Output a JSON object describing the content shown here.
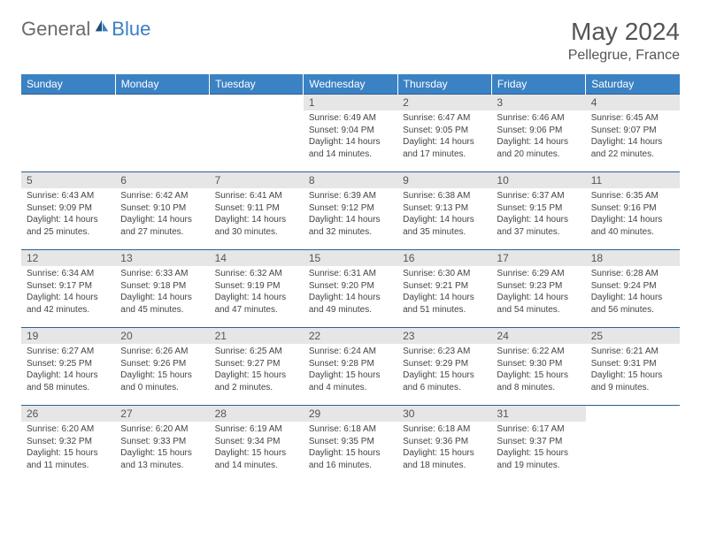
{
  "brand": {
    "part1": "General",
    "part2": "Blue"
  },
  "title": "May 2024",
  "location": "Pellegrue, France",
  "colors": {
    "header_bg": "#3b82c4",
    "header_text": "#ffffff",
    "daynum_bg": "#e6e6e6",
    "row_divider": "#2f5f8f",
    "brand_gray": "#6b6b6b",
    "brand_blue": "#3b7fc4",
    "body_text": "#444444"
  },
  "day_headers": [
    "Sunday",
    "Monday",
    "Tuesday",
    "Wednesday",
    "Thursday",
    "Friday",
    "Saturday"
  ],
  "weeks": [
    [
      {
        "n": "",
        "sr": "",
        "ss": "",
        "dl": ""
      },
      {
        "n": "",
        "sr": "",
        "ss": "",
        "dl": ""
      },
      {
        "n": "",
        "sr": "",
        "ss": "",
        "dl": ""
      },
      {
        "n": "1",
        "sr": "Sunrise: 6:49 AM",
        "ss": "Sunset: 9:04 PM",
        "dl": "Daylight: 14 hours and 14 minutes."
      },
      {
        "n": "2",
        "sr": "Sunrise: 6:47 AM",
        "ss": "Sunset: 9:05 PM",
        "dl": "Daylight: 14 hours and 17 minutes."
      },
      {
        "n": "3",
        "sr": "Sunrise: 6:46 AM",
        "ss": "Sunset: 9:06 PM",
        "dl": "Daylight: 14 hours and 20 minutes."
      },
      {
        "n": "4",
        "sr": "Sunrise: 6:45 AM",
        "ss": "Sunset: 9:07 PM",
        "dl": "Daylight: 14 hours and 22 minutes."
      }
    ],
    [
      {
        "n": "5",
        "sr": "Sunrise: 6:43 AM",
        "ss": "Sunset: 9:09 PM",
        "dl": "Daylight: 14 hours and 25 minutes."
      },
      {
        "n": "6",
        "sr": "Sunrise: 6:42 AM",
        "ss": "Sunset: 9:10 PM",
        "dl": "Daylight: 14 hours and 27 minutes."
      },
      {
        "n": "7",
        "sr": "Sunrise: 6:41 AM",
        "ss": "Sunset: 9:11 PM",
        "dl": "Daylight: 14 hours and 30 minutes."
      },
      {
        "n": "8",
        "sr": "Sunrise: 6:39 AM",
        "ss": "Sunset: 9:12 PM",
        "dl": "Daylight: 14 hours and 32 minutes."
      },
      {
        "n": "9",
        "sr": "Sunrise: 6:38 AM",
        "ss": "Sunset: 9:13 PM",
        "dl": "Daylight: 14 hours and 35 minutes."
      },
      {
        "n": "10",
        "sr": "Sunrise: 6:37 AM",
        "ss": "Sunset: 9:15 PM",
        "dl": "Daylight: 14 hours and 37 minutes."
      },
      {
        "n": "11",
        "sr": "Sunrise: 6:35 AM",
        "ss": "Sunset: 9:16 PM",
        "dl": "Daylight: 14 hours and 40 minutes."
      }
    ],
    [
      {
        "n": "12",
        "sr": "Sunrise: 6:34 AM",
        "ss": "Sunset: 9:17 PM",
        "dl": "Daylight: 14 hours and 42 minutes."
      },
      {
        "n": "13",
        "sr": "Sunrise: 6:33 AM",
        "ss": "Sunset: 9:18 PM",
        "dl": "Daylight: 14 hours and 45 minutes."
      },
      {
        "n": "14",
        "sr": "Sunrise: 6:32 AM",
        "ss": "Sunset: 9:19 PM",
        "dl": "Daylight: 14 hours and 47 minutes."
      },
      {
        "n": "15",
        "sr": "Sunrise: 6:31 AM",
        "ss": "Sunset: 9:20 PM",
        "dl": "Daylight: 14 hours and 49 minutes."
      },
      {
        "n": "16",
        "sr": "Sunrise: 6:30 AM",
        "ss": "Sunset: 9:21 PM",
        "dl": "Daylight: 14 hours and 51 minutes."
      },
      {
        "n": "17",
        "sr": "Sunrise: 6:29 AM",
        "ss": "Sunset: 9:23 PM",
        "dl": "Daylight: 14 hours and 54 minutes."
      },
      {
        "n": "18",
        "sr": "Sunrise: 6:28 AM",
        "ss": "Sunset: 9:24 PM",
        "dl": "Daylight: 14 hours and 56 minutes."
      }
    ],
    [
      {
        "n": "19",
        "sr": "Sunrise: 6:27 AM",
        "ss": "Sunset: 9:25 PM",
        "dl": "Daylight: 14 hours and 58 minutes."
      },
      {
        "n": "20",
        "sr": "Sunrise: 6:26 AM",
        "ss": "Sunset: 9:26 PM",
        "dl": "Daylight: 15 hours and 0 minutes."
      },
      {
        "n": "21",
        "sr": "Sunrise: 6:25 AM",
        "ss": "Sunset: 9:27 PM",
        "dl": "Daylight: 15 hours and 2 minutes."
      },
      {
        "n": "22",
        "sr": "Sunrise: 6:24 AM",
        "ss": "Sunset: 9:28 PM",
        "dl": "Daylight: 15 hours and 4 minutes."
      },
      {
        "n": "23",
        "sr": "Sunrise: 6:23 AM",
        "ss": "Sunset: 9:29 PM",
        "dl": "Daylight: 15 hours and 6 minutes."
      },
      {
        "n": "24",
        "sr": "Sunrise: 6:22 AM",
        "ss": "Sunset: 9:30 PM",
        "dl": "Daylight: 15 hours and 8 minutes."
      },
      {
        "n": "25",
        "sr": "Sunrise: 6:21 AM",
        "ss": "Sunset: 9:31 PM",
        "dl": "Daylight: 15 hours and 9 minutes."
      }
    ],
    [
      {
        "n": "26",
        "sr": "Sunrise: 6:20 AM",
        "ss": "Sunset: 9:32 PM",
        "dl": "Daylight: 15 hours and 11 minutes."
      },
      {
        "n": "27",
        "sr": "Sunrise: 6:20 AM",
        "ss": "Sunset: 9:33 PM",
        "dl": "Daylight: 15 hours and 13 minutes."
      },
      {
        "n": "28",
        "sr": "Sunrise: 6:19 AM",
        "ss": "Sunset: 9:34 PM",
        "dl": "Daylight: 15 hours and 14 minutes."
      },
      {
        "n": "29",
        "sr": "Sunrise: 6:18 AM",
        "ss": "Sunset: 9:35 PM",
        "dl": "Daylight: 15 hours and 16 minutes."
      },
      {
        "n": "30",
        "sr": "Sunrise: 6:18 AM",
        "ss": "Sunset: 9:36 PM",
        "dl": "Daylight: 15 hours and 18 minutes."
      },
      {
        "n": "31",
        "sr": "Sunrise: 6:17 AM",
        "ss": "Sunset: 9:37 PM",
        "dl": "Daylight: 15 hours and 19 minutes."
      },
      {
        "n": "",
        "sr": "",
        "ss": "",
        "dl": ""
      }
    ]
  ]
}
